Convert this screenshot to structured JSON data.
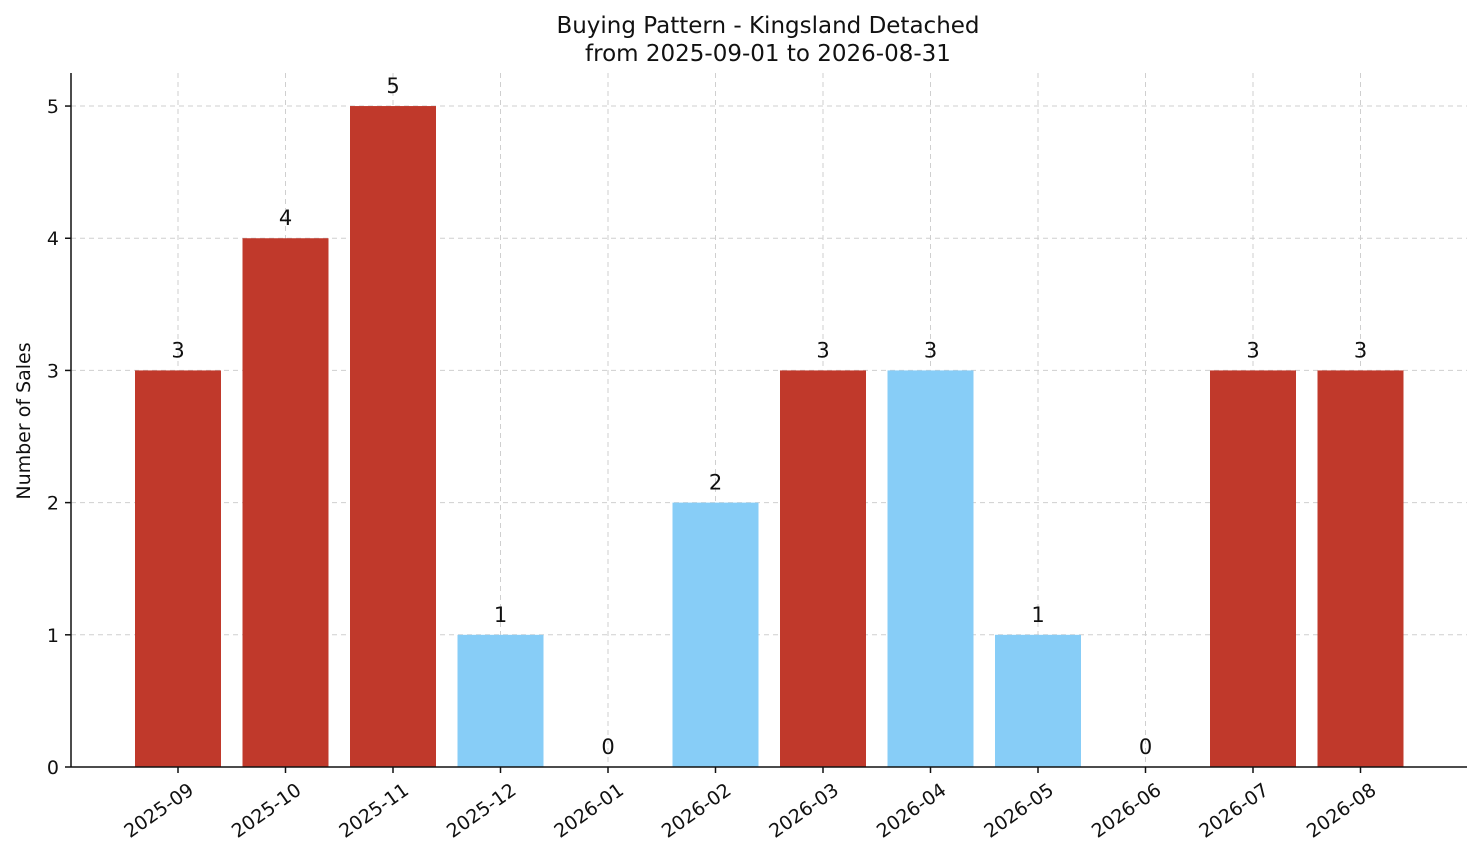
{
  "chart_data": {
    "type": "bar",
    "title": "Buying Pattern - Kingsland Detached",
    "subtitle": "from 2025-09-01 to 2026-08-31",
    "xlabel": "",
    "ylabel": "Number of Sales",
    "categories": [
      "2025-09",
      "2025-10",
      "2025-11",
      "2025-12",
      "2026-01",
      "2026-02",
      "2026-03",
      "2026-04",
      "2026-05",
      "2026-06",
      "2026-07",
      "2026-08"
    ],
    "values": [
      3,
      4,
      5,
      1,
      0,
      2,
      3,
      3,
      1,
      0,
      3,
      3
    ],
    "bar_colors": [
      "#c0392b",
      "#c0392b",
      "#c0392b",
      "#87cdf7",
      "#87cdf7",
      "#87cdf7",
      "#c0392b",
      "#87cdf7",
      "#87cdf7",
      "#87cdf7",
      "#c0392b",
      "#c0392b"
    ],
    "ylim": [
      0,
      5.25
    ],
    "yticks": [
      0,
      1,
      2,
      3,
      4,
      5
    ],
    "grid": true,
    "legend": "none"
  }
}
